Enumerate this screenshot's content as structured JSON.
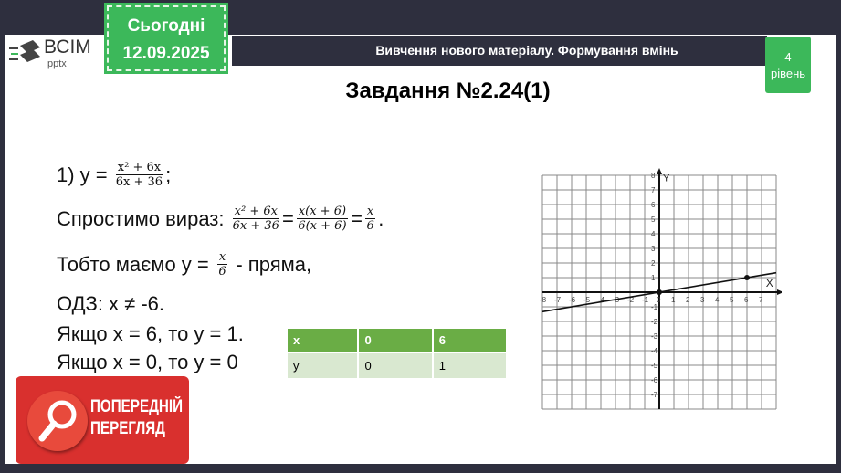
{
  "header": {
    "logo_text": "ВСІМ",
    "logo_sub": "pptx",
    "date_label": "Сьогодні",
    "date": "12.09.2025",
    "banner": "Вивчення нового матеріалу.  Формування вмінь",
    "level_num": "4",
    "level_label": "рівень"
  },
  "title": "Завдання №2.24(1)",
  "solution": {
    "l1_prefix": "1) y =",
    "l1_num": "x² + 6x",
    "l1_den": "6x + 36",
    "l1_suffix": ";",
    "l2_prefix": "Спростимо вираз:",
    "l2_n1": "x² + 6x",
    "l2_d1": "6x + 36",
    "l2_eq1": "=",
    "l2_n2": "x(x + 6)",
    "l2_d2": "6(x + 6)",
    "l2_eq2": "=",
    "l2_n3": "x",
    "l2_d3": "6",
    "l2_suffix": ".",
    "l3_prefix": "Тобто маємо y =",
    "l3_num": "x",
    "l3_den": "6",
    "l3_suffix": "- пряма,",
    "l4": "ОДЗ: x ≠ -6.",
    "l5": "Якщо x = 6, то y = 1.",
    "l6": "Якщо x = 0, то y = 0"
  },
  "table": {
    "headers": [
      "x",
      "0",
      "6"
    ],
    "row": [
      "y",
      "0",
      "1"
    ],
    "header_color": "#6aad45",
    "row_color": "#d9e8d0"
  },
  "preview": {
    "line1": "ПОПЕРЕДНІЙ",
    "line2": "ПЕРЕГЛЯД",
    "icon": "magnifier-icon"
  },
  "chart_data": {
    "type": "line",
    "xlabel": "X",
    "ylabel": "Y",
    "xlim": [
      -8,
      8
    ],
    "ylim": [
      -8,
      8
    ],
    "grid": true,
    "x_ticks": [
      -8,
      -7,
      -6,
      -5,
      -4,
      -3,
      -2,
      -1,
      0,
      1,
      2,
      3,
      4,
      5,
      6,
      7
    ],
    "y_ticks": [
      -7,
      -6,
      -5,
      -4,
      -3,
      -2,
      -1,
      1,
      2,
      3,
      4,
      5,
      6,
      7,
      8
    ],
    "series": [
      {
        "function": "y = x/6",
        "x": [
          -8,
          8
        ],
        "y": [
          -1.333,
          1.333
        ]
      }
    ],
    "points": [
      {
        "x": 0,
        "y": 0
      },
      {
        "x": 6,
        "y": 1
      }
    ]
  }
}
